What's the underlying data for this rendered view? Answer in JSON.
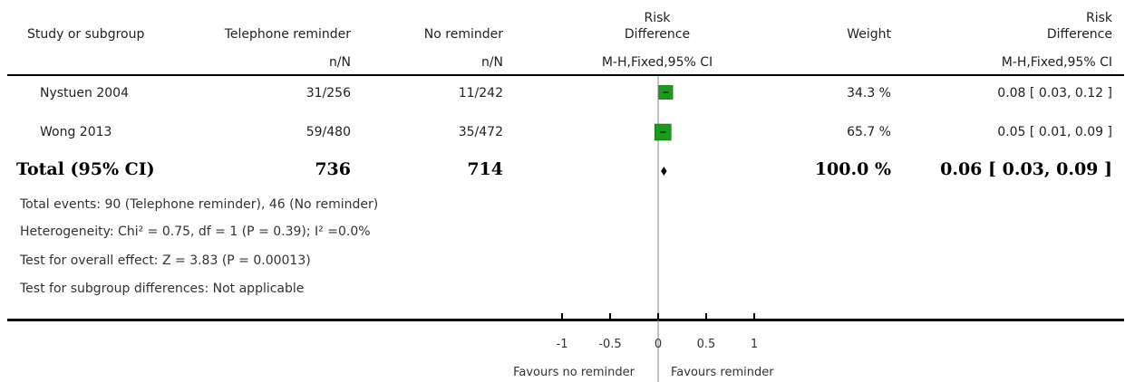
{
  "header": {
    "study": "Study or subgroup",
    "group1": "Telephone reminder",
    "group2": "No reminder",
    "rd_line1": "Risk",
    "rd_line2": "Difference",
    "weight": "Weight",
    "rd2_line1": "Risk",
    "rd2_line2": "Difference",
    "sub_g1": "n/N",
    "sub_g2": "n/N",
    "sub_rd": "M-H,Fixed,95% CI",
    "sub_rd2": "M-H,Fixed,95% CI"
  },
  "studies": [
    {
      "name": "Nystuen 2004",
      "g1": "31/256",
      "g2": "11/242",
      "weight": "34.3 %",
      "ci_text": "0.08 [ 0.03, 0.12 ]"
    },
    {
      "name": "Wong 2013",
      "g1": "59/480",
      "g2": "35/472",
      "weight": "65.7 %",
      "ci_text": "0.05 [ 0.01, 0.09 ]"
    }
  ],
  "total": {
    "label": "Total (95% CI)",
    "g1": "736",
    "g2": "714",
    "weight": "100.0 %",
    "ci_text": "0.06 [ 0.03, 0.09 ]"
  },
  "footnotes": {
    "events": "Total events: 90 (Telephone reminder), 46 (No reminder)",
    "heterogeneity": "Heterogeneity: Chi² = 0.75, df = 1 (P = 0.39); I² =0.0%",
    "overall": "Test for overall effect: Z = 3.83 (P = 0.00013)",
    "subgroup": "Test for subgroup differences: Not applicable"
  },
  "axis": {
    "favours_left": "Favours no reminder",
    "favours_right": "Favours reminder"
  },
  "chart_data": {
    "type": "scatter",
    "xlim": [
      -1,
      1
    ],
    "ticks": [
      -1,
      -0.5,
      0,
      0.5,
      1
    ],
    "tick_labels": [
      "-1",
      "-0.5",
      "0",
      "0.5",
      "1"
    ],
    "studies": [
      {
        "name": "Nystuen 2004",
        "estimate": 0.08,
        "ci_low": 0.03,
        "ci_high": 0.12,
        "weight": 34.3
      },
      {
        "name": "Wong 2013",
        "estimate": 0.05,
        "ci_low": 0.01,
        "ci_high": 0.09,
        "weight": 65.7
      }
    ],
    "pooled": {
      "estimate": 0.06,
      "ci_low": 0.03,
      "ci_high": 0.09
    },
    "marker_color": "#1a9c1a",
    "diamond_color": "#000000"
  }
}
